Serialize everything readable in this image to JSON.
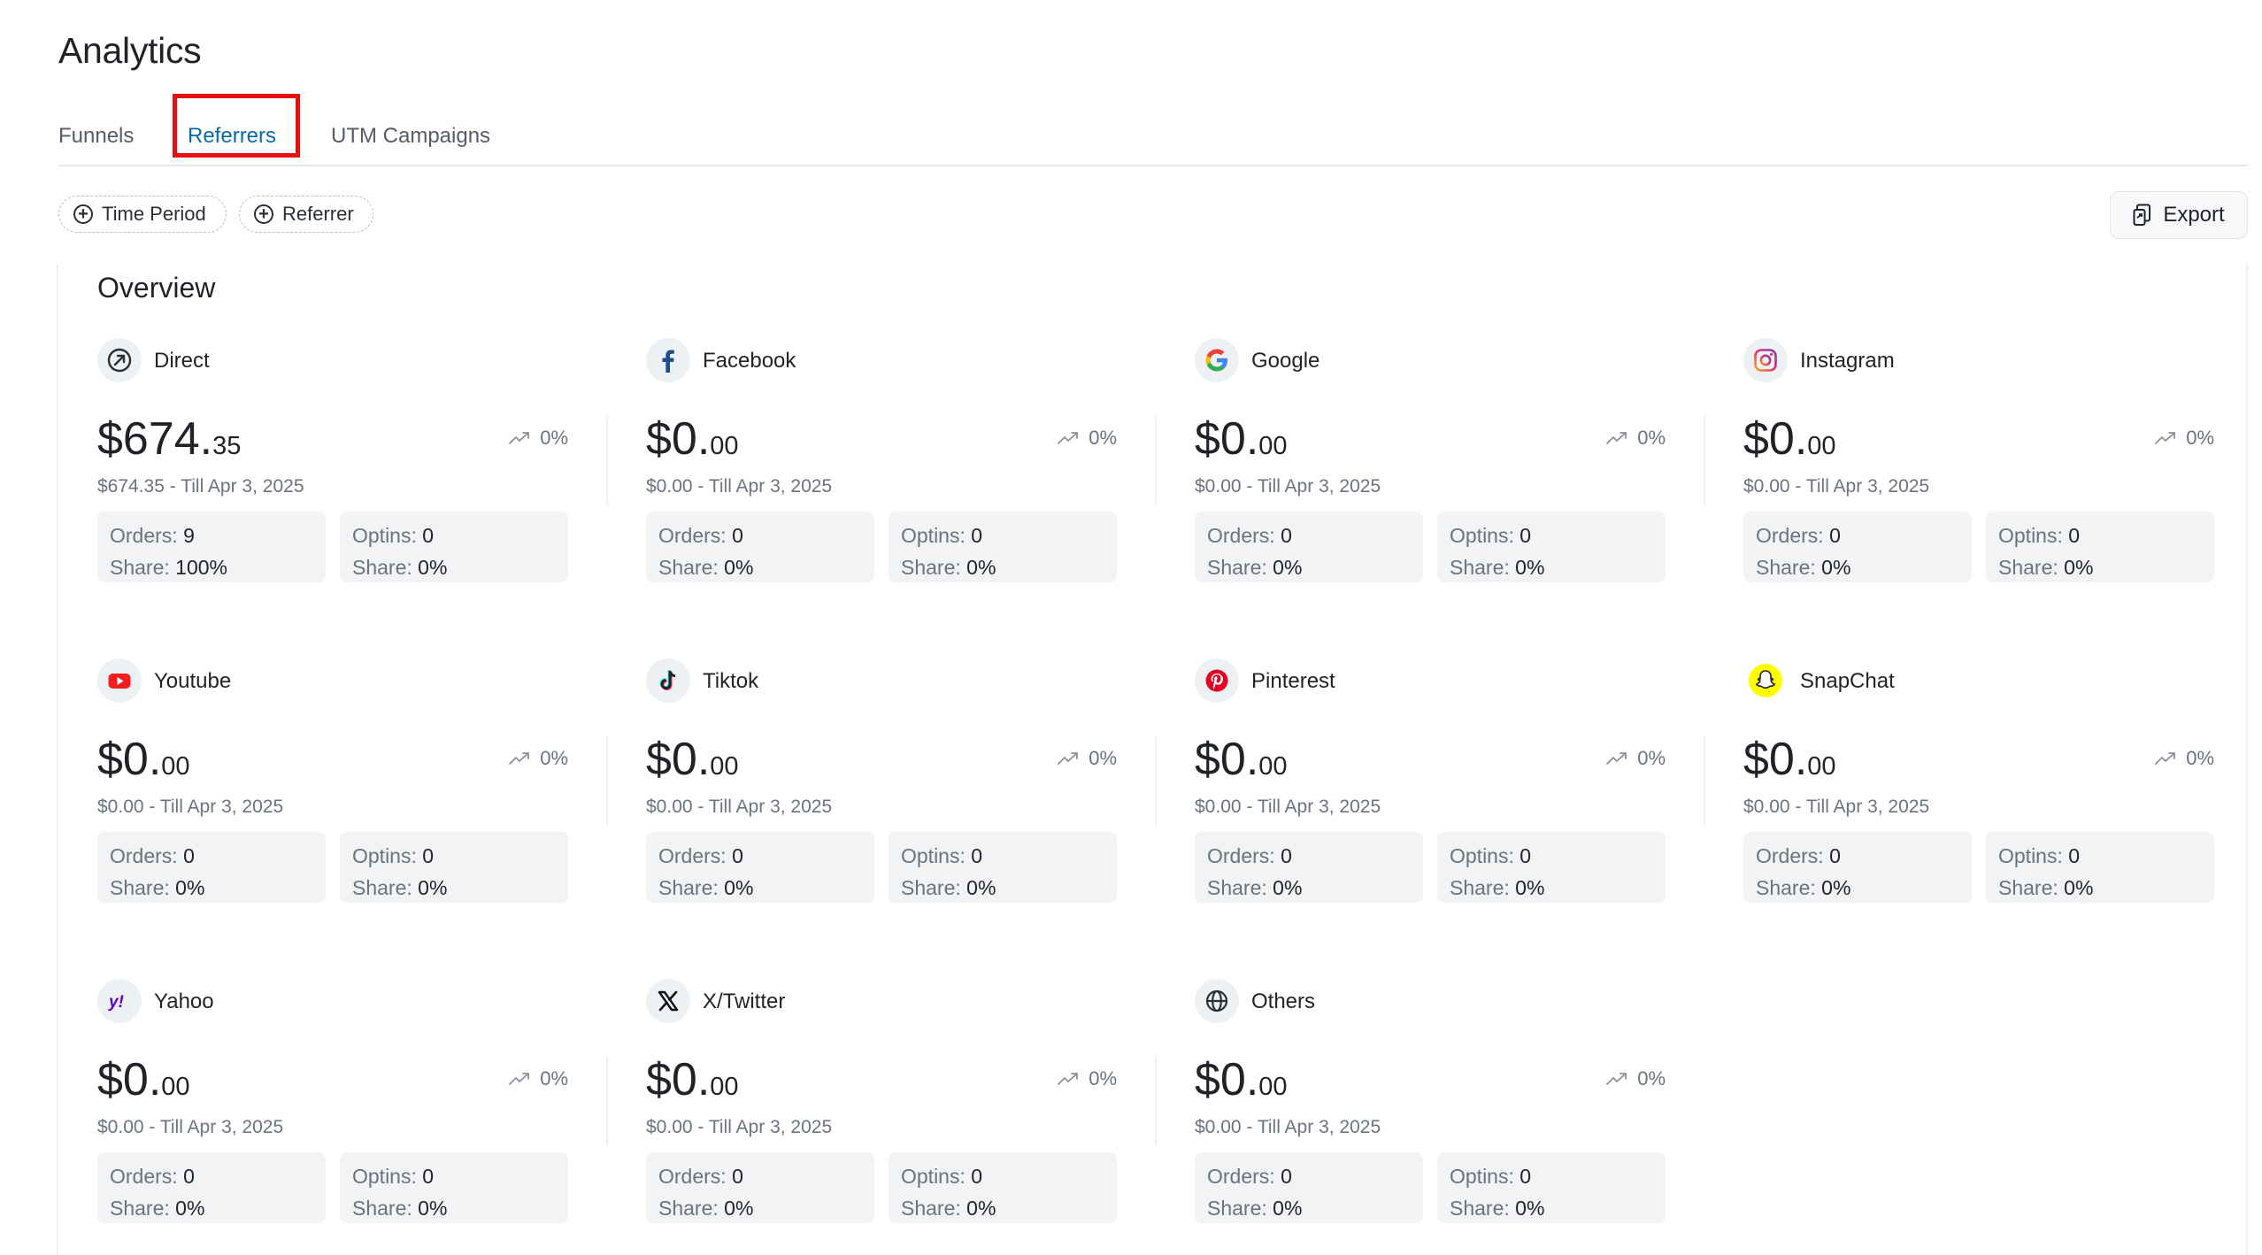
{
  "page_title": "Analytics",
  "tabs": [
    {
      "label": "Funnels",
      "active": false
    },
    {
      "label": "Referrers",
      "active": true
    },
    {
      "label": "UTM Campaigns",
      "active": false
    }
  ],
  "filters": [
    {
      "label": "Time Period"
    },
    {
      "label": "Referrer"
    }
  ],
  "export_label": "Export",
  "overview_title": "Overview",
  "labels": {
    "orders": "Orders:",
    "optins": "Optins:",
    "share": "Share:"
  },
  "colors": {
    "accent": "#0a6aa9",
    "highlight_box": "#e8100e",
    "stat_bg": "#f1f3f5"
  },
  "referrers": [
    {
      "name": "Direct",
      "icon": "direct-arrow-icon",
      "amount_main": "$674.",
      "amount_cents": "35",
      "trend": "0%",
      "subtitle": "$674.35 - Till Apr 3, 2025",
      "orders": "9",
      "orders_share": "100%",
      "optins": "0",
      "optins_share": "0%"
    },
    {
      "name": "Facebook",
      "icon": "facebook-icon",
      "amount_main": "$0.",
      "amount_cents": "00",
      "trend": "0%",
      "subtitle": "$0.00 - Till Apr 3, 2025",
      "orders": "0",
      "orders_share": "0%",
      "optins": "0",
      "optins_share": "0%"
    },
    {
      "name": "Google",
      "icon": "google-icon",
      "amount_main": "$0.",
      "amount_cents": "00",
      "trend": "0%",
      "subtitle": "$0.00 - Till Apr 3, 2025",
      "orders": "0",
      "orders_share": "0%",
      "optins": "0",
      "optins_share": "0%"
    },
    {
      "name": "Instagram",
      "icon": "instagram-icon",
      "amount_main": "$0.",
      "amount_cents": "00",
      "trend": "0%",
      "subtitle": "$0.00 - Till Apr 3, 2025",
      "orders": "0",
      "orders_share": "0%",
      "optins": "0",
      "optins_share": "0%"
    },
    {
      "name": "Youtube",
      "icon": "youtube-icon",
      "amount_main": "$0.",
      "amount_cents": "00",
      "trend": "0%",
      "subtitle": "$0.00 - Till Apr 3, 2025",
      "orders": "0",
      "orders_share": "0%",
      "optins": "0",
      "optins_share": "0%"
    },
    {
      "name": "Tiktok",
      "icon": "tiktok-icon",
      "amount_main": "$0.",
      "amount_cents": "00",
      "trend": "0%",
      "subtitle": "$0.00 - Till Apr 3, 2025",
      "orders": "0",
      "orders_share": "0%",
      "optins": "0",
      "optins_share": "0%"
    },
    {
      "name": "Pinterest",
      "icon": "pinterest-icon",
      "amount_main": "$0.",
      "amount_cents": "00",
      "trend": "0%",
      "subtitle": "$0.00 - Till Apr 3, 2025",
      "orders": "0",
      "orders_share": "0%",
      "optins": "0",
      "optins_share": "0%"
    },
    {
      "name": "SnapChat",
      "icon": "snapchat-icon",
      "amount_main": "$0.",
      "amount_cents": "00",
      "trend": "0%",
      "subtitle": "$0.00 - Till Apr 3, 2025",
      "orders": "0",
      "orders_share": "0%",
      "optins": "0",
      "optins_share": "0%"
    },
    {
      "name": "Yahoo",
      "icon": "yahoo-icon",
      "amount_main": "$0.",
      "amount_cents": "00",
      "trend": "0%",
      "subtitle": "$0.00 - Till Apr 3, 2025",
      "orders": "0",
      "orders_share": "0%",
      "optins": "0",
      "optins_share": "0%"
    },
    {
      "name": "X/Twitter",
      "icon": "x-twitter-icon",
      "amount_main": "$0.",
      "amount_cents": "00",
      "trend": "0%",
      "subtitle": "$0.00 - Till Apr 3, 2025",
      "orders": "0",
      "orders_share": "0%",
      "optins": "0",
      "optins_share": "0%"
    },
    {
      "name": "Others",
      "icon": "globe-icon",
      "amount_main": "$0.",
      "amount_cents": "00",
      "trend": "0%",
      "subtitle": "$0.00 - Till Apr 3, 2025",
      "orders": "0",
      "orders_share": "0%",
      "optins": "0",
      "optins_share": "0%"
    }
  ]
}
